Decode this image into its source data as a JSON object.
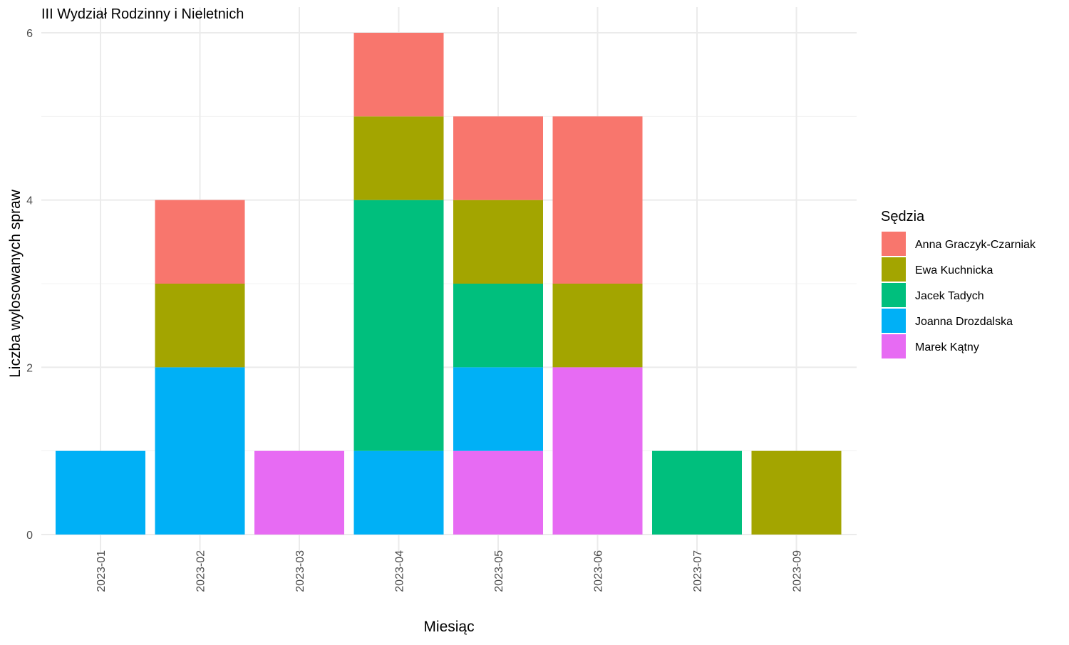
{
  "chart_data": {
    "type": "bar",
    "stacked": true,
    "title": "III Wydział Rodzinny i Nieletnich",
    "xlabel": "Miesiąc",
    "ylabel": "Liczba wylosowanych spraw",
    "ylim": [
      0,
      6
    ],
    "yticks": [
      0,
      2,
      4,
      6
    ],
    "grid": true,
    "legend_title": "Sędzia",
    "legend_position": "right",
    "categories": [
      "2023-01",
      "2023-02",
      "2023-03",
      "2023-04",
      "2023-05",
      "2023-06",
      "2023-07",
      "2023-09"
    ],
    "series": [
      {
        "name": "Marek Kątny",
        "color": "#E76BF3",
        "values": [
          0,
          0,
          1,
          0,
          1,
          2,
          0,
          0
        ]
      },
      {
        "name": "Joanna Drozdalska",
        "color": "#00B0F6",
        "values": [
          1,
          2,
          0,
          1,
          1,
          0,
          0,
          0
        ]
      },
      {
        "name": "Jacek Tadych",
        "color": "#00BF7D",
        "values": [
          0,
          0,
          0,
          3,
          1,
          0,
          1,
          0
        ]
      },
      {
        "name": "Ewa Kuchnicka",
        "color": "#A3A500",
        "values": [
          0,
          1,
          0,
          1,
          1,
          1,
          0,
          1
        ]
      },
      {
        "name": "Anna Graczyk-Czarniak",
        "color": "#F8766D",
        "values": [
          0,
          1,
          0,
          1,
          1,
          2,
          0,
          0
        ]
      }
    ],
    "legend_order": [
      "Anna Graczyk-Czarniak",
      "Ewa Kuchnicka",
      "Jacek Tadych",
      "Joanna Drozdalska",
      "Marek Kątny"
    ]
  }
}
